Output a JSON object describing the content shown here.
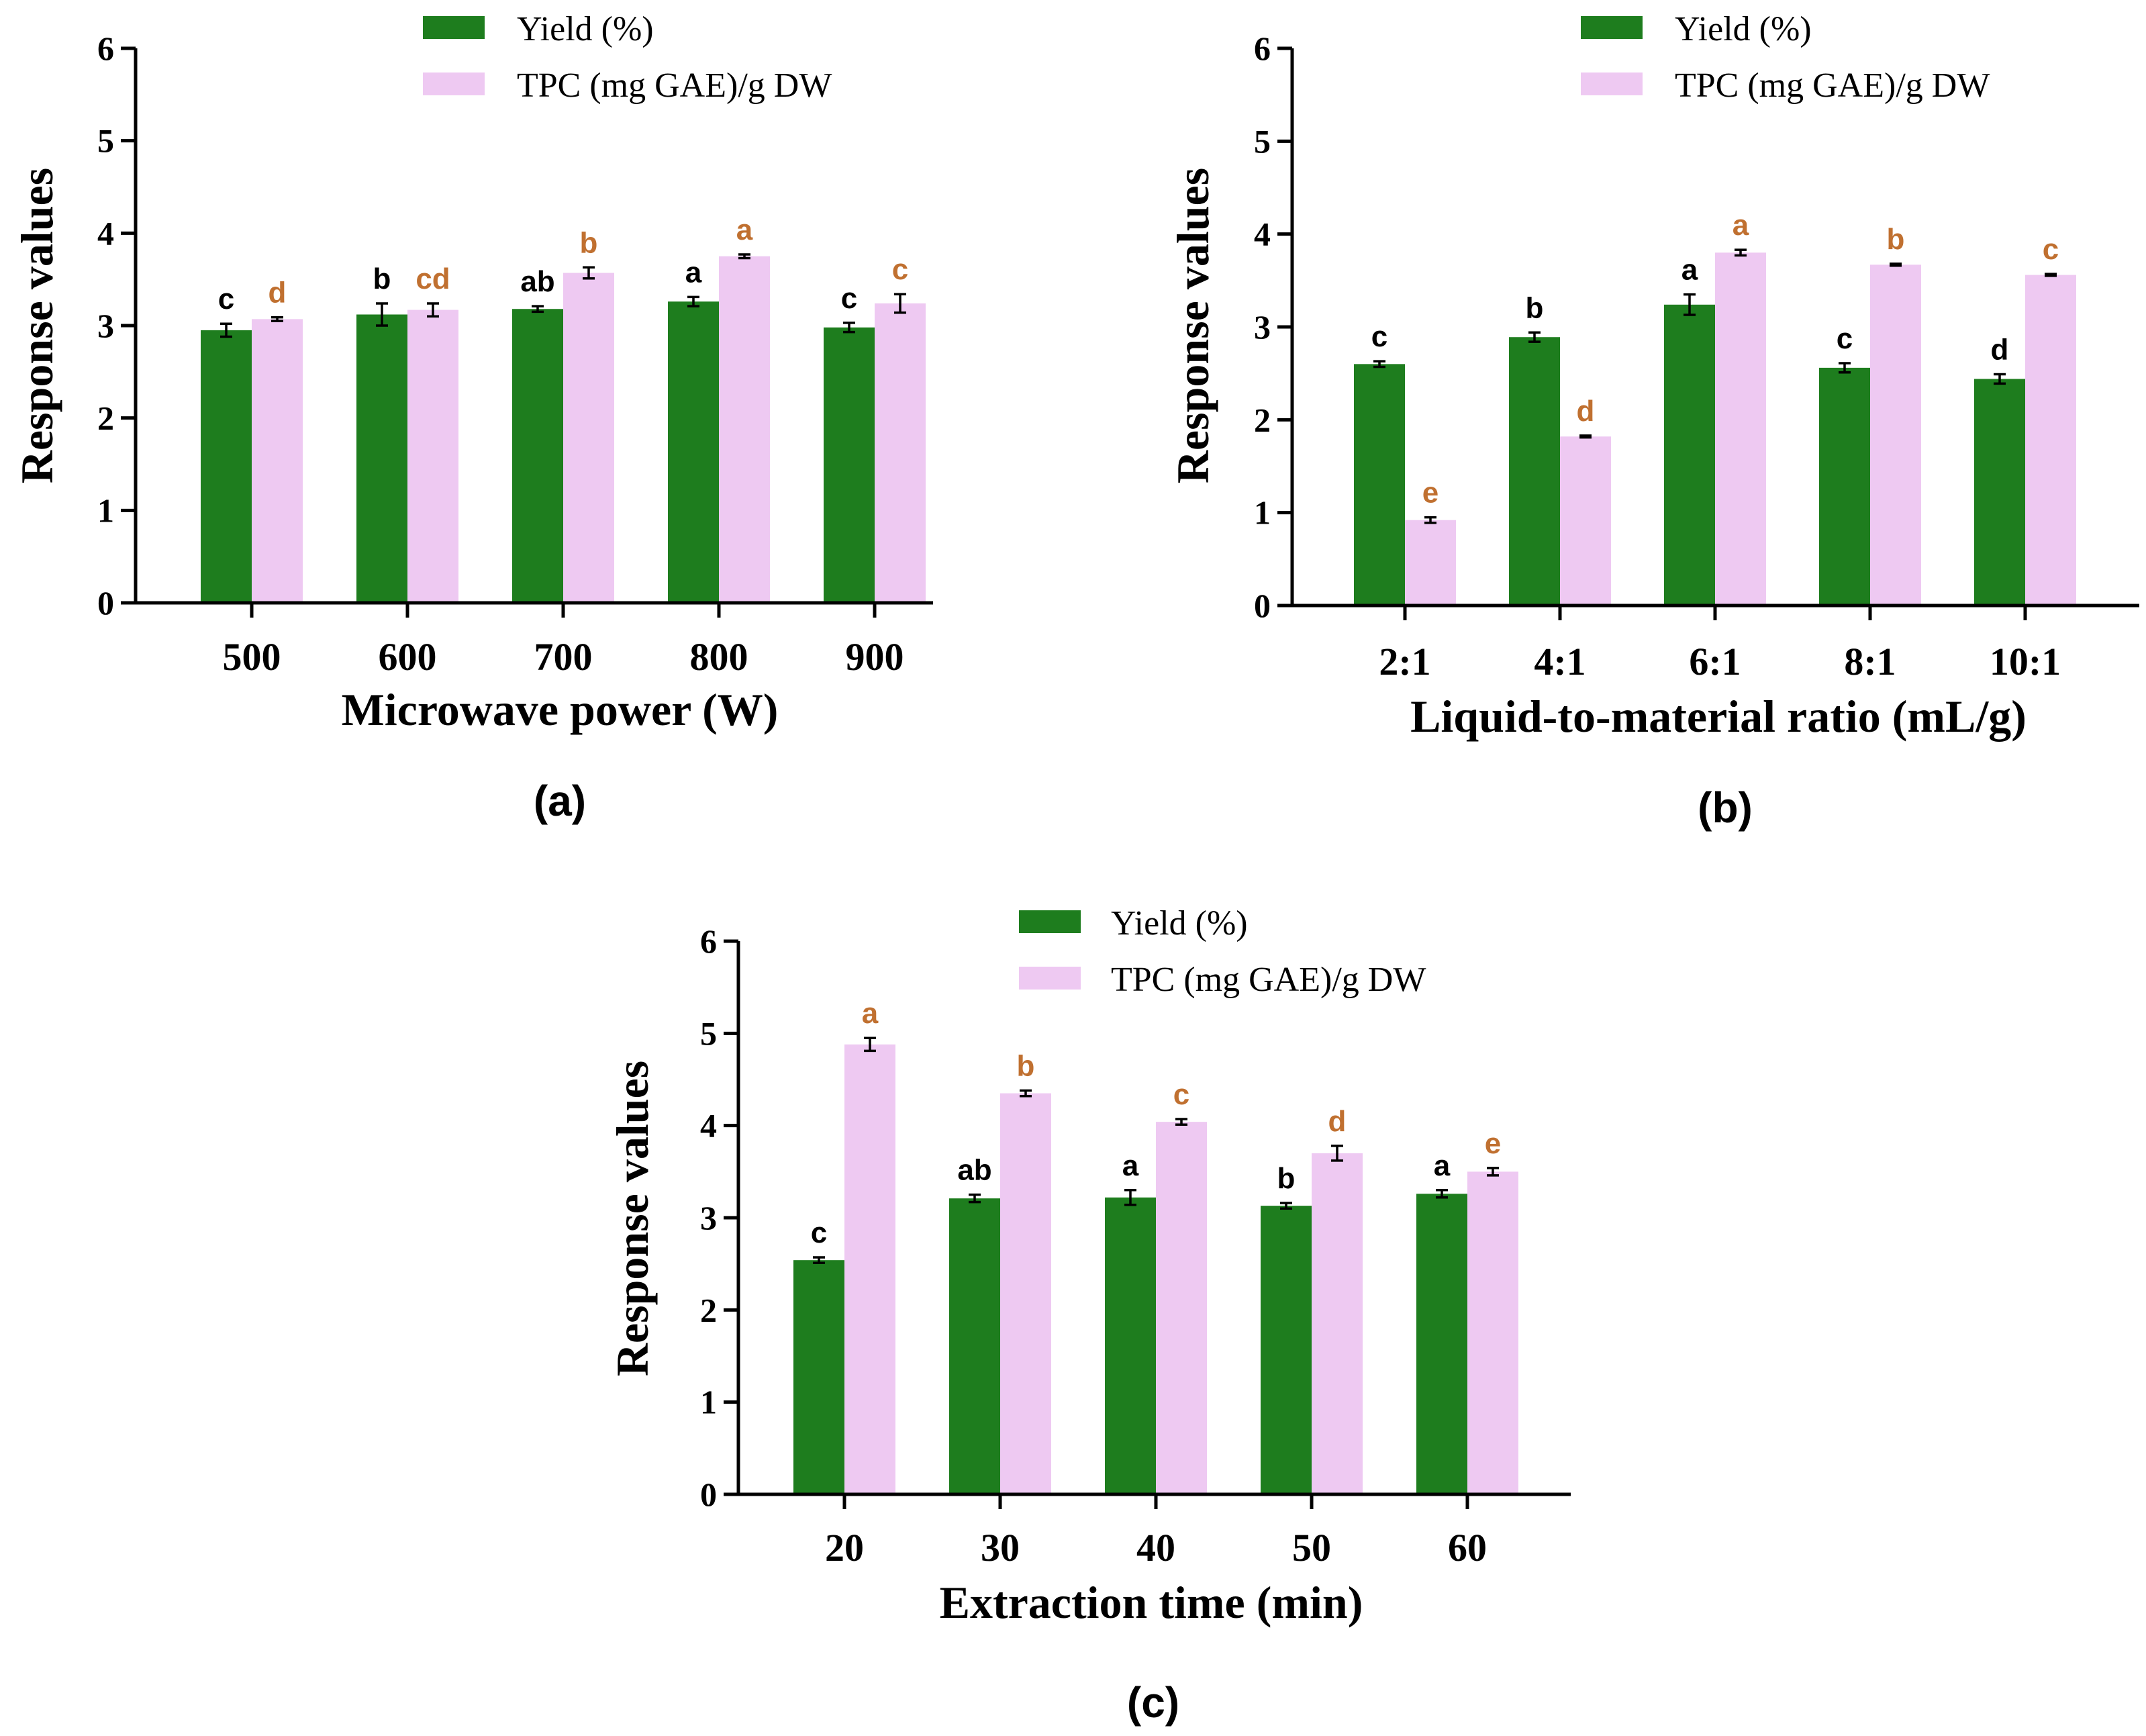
{
  "colors": {
    "yield": "#1e7d1e",
    "tpc": "#eec9f2",
    "sig_yield": "#000000",
    "sig_tpc": "#c07030"
  },
  "legend": {
    "yield_label": "Yield (%)",
    "tpc_label": "TPC (mg GAE)/g DW"
  },
  "chart_data": [
    {
      "id": "a",
      "type": "bar",
      "panel_label": "(a)",
      "title": "",
      "xlabel": "Microwave power (W)",
      "ylabel": "Response values",
      "ylim": [
        0,
        6
      ],
      "yticks": [
        "0",
        "1",
        "2",
        "3",
        "4",
        "5",
        "6"
      ],
      "categories": [
        "500",
        "600",
        "700",
        "800",
        "900"
      ],
      "series": [
        {
          "name": "Yield (%)",
          "values": [
            2.95,
            3.12,
            3.18,
            3.26,
            2.98
          ],
          "errors": [
            0.07,
            0.12,
            0.03,
            0.05,
            0.05
          ],
          "letters": [
            "c",
            "b",
            "ab",
            "a",
            "c"
          ]
        },
        {
          "name": "TPC (mg GAE)/g DW",
          "values": [
            3.07,
            3.17,
            3.57,
            3.75,
            3.24
          ],
          "errors": [
            0.02,
            0.07,
            0.06,
            0.02,
            0.1
          ],
          "letters": [
            "d",
            "cd",
            "b",
            "a",
            "c"
          ]
        }
      ]
    },
    {
      "id": "b",
      "type": "bar",
      "panel_label": "(b)",
      "title": "",
      "xlabel": "Liquid-to-material ratio (mL/g)",
      "ylabel": "Response values",
      "ylim": [
        0,
        6
      ],
      "yticks": [
        "0",
        "1",
        "2",
        "3",
        "4",
        "5",
        "6"
      ],
      "categories": [
        "2:1",
        "4:1",
        "6:1",
        "8:1",
        "10:1"
      ],
      "series": [
        {
          "name": "Yield (%)",
          "values": [
            2.6,
            2.89,
            3.24,
            2.56,
            2.44
          ],
          "errors": [
            0.03,
            0.05,
            0.11,
            0.05,
            0.05
          ],
          "letters": [
            "c",
            "b",
            "a",
            "c",
            "d"
          ]
        },
        {
          "name": "TPC (mg GAE)/g DW",
          "values": [
            0.92,
            1.82,
            3.8,
            3.67,
            3.56
          ],
          "errors": [
            0.03,
            0.01,
            0.03,
            0.01,
            0.01
          ],
          "letters": [
            "e",
            "d",
            "a",
            "b",
            "c"
          ]
        }
      ]
    },
    {
      "id": "c",
      "type": "bar",
      "panel_label": "(c)",
      "title": "",
      "xlabel": "Extraction time (min)",
      "ylabel": "Response values",
      "ylim": [
        0,
        6
      ],
      "yticks": [
        "0",
        "1",
        "2",
        "3",
        "4",
        "5",
        "6"
      ],
      "categories": [
        "20",
        "30",
        "40",
        "50",
        "60"
      ],
      "series": [
        {
          "name": "Yield (%)",
          "values": [
            2.54,
            3.21,
            3.22,
            3.13,
            3.26
          ],
          "errors": [
            0.03,
            0.04,
            0.08,
            0.03,
            0.04
          ],
          "letters": [
            "c",
            "ab",
            "a",
            "b",
            "a"
          ]
        },
        {
          "name": "TPC (mg GAE)/g DW",
          "values": [
            4.88,
            4.35,
            4.04,
            3.7,
            3.5
          ],
          "errors": [
            0.07,
            0.03,
            0.03,
            0.08,
            0.04
          ],
          "letters": [
            "a",
            "b",
            "c",
            "d",
            "e"
          ]
        }
      ]
    }
  ]
}
